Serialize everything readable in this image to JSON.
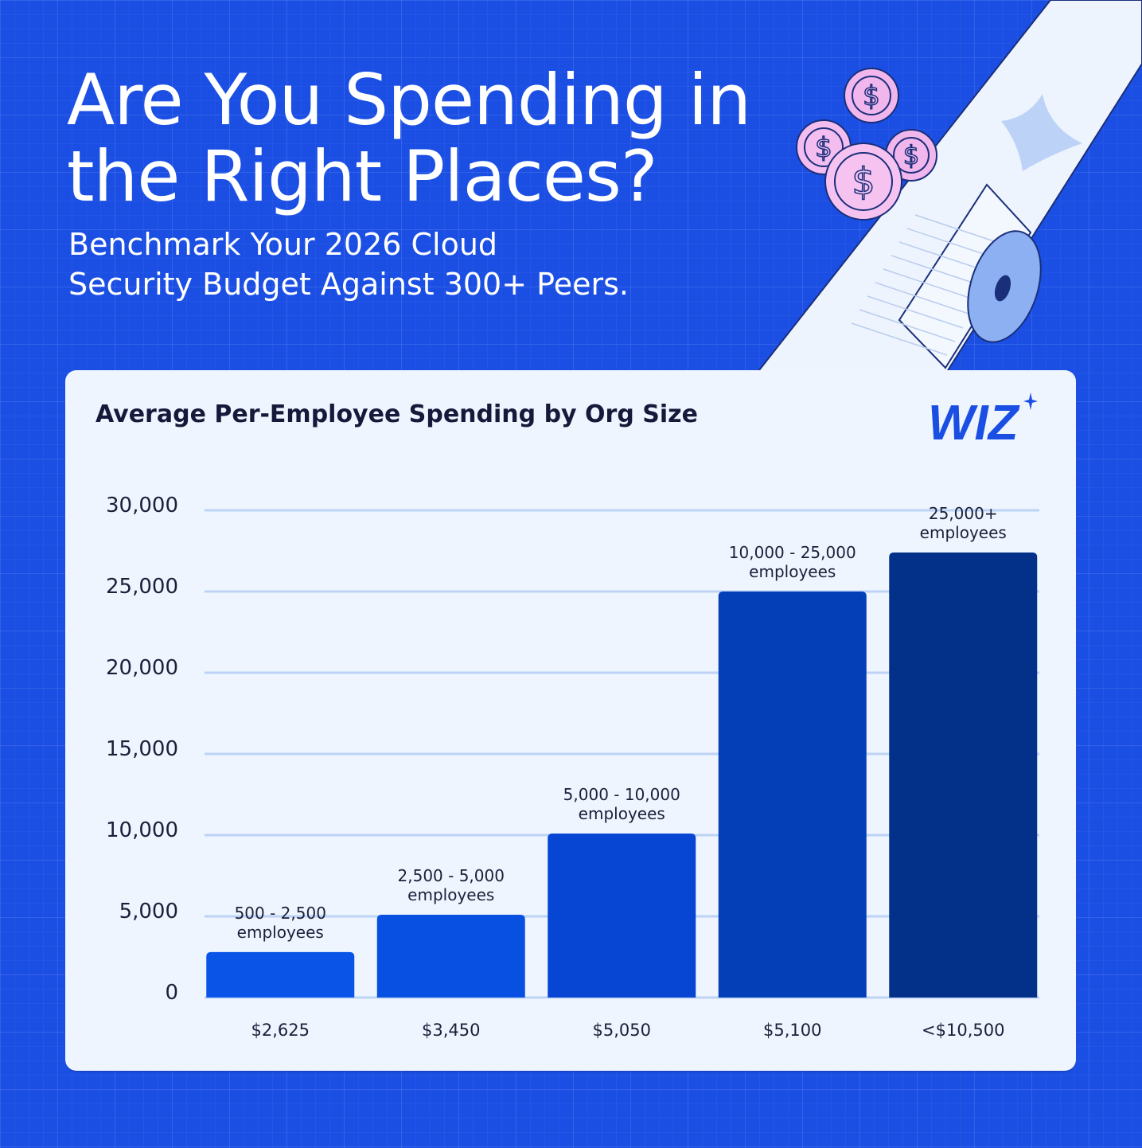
{
  "header": {
    "title_line1": "Are You Spending in",
    "title_line2": "the Right Places?",
    "subtitle_line1": "Benchmark Your 2026 Cloud",
    "subtitle_line2": "Security Budget Against 300+ Peers."
  },
  "brand": {
    "logo_text": "WIZ",
    "color": "#1b4fe4"
  },
  "chart_data": {
    "type": "bar",
    "title": "Average Per-Employee Spending by Org Size",
    "categories": [
      "$2,625",
      "$3,450",
      "$5,050",
      "$5,100",
      "<$10,500"
    ],
    "bar_labels": [
      [
        "500 - 2,500",
        "employees"
      ],
      [
        "2,500 - 5,000",
        "employees"
      ],
      [
        "5,000 - 10,000",
        "employees"
      ],
      [
        "10,000 - 25,000",
        "employees"
      ],
      [
        "25,000+",
        "employees"
      ]
    ],
    "values": [
      2800,
      5100,
      10100,
      25000,
      27400
    ],
    "colors": [
      "#0a55e8",
      "#0850e2",
      "#0646d2",
      "#053fb8",
      "#03318a"
    ],
    "yticks": [
      "0",
      "5,000",
      "10,000",
      "15,000",
      "20,000",
      "25,000",
      "30,000"
    ],
    "ylim": [
      0,
      30000
    ],
    "grid": true,
    "xlabel": "",
    "ylabel": ""
  }
}
